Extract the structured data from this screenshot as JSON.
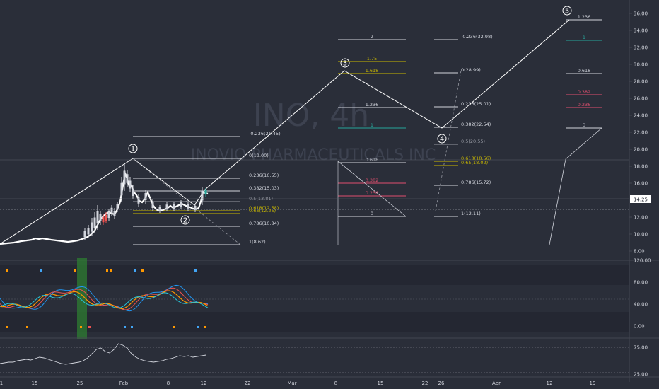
{
  "watermark": {
    "symbol": "INO, 4h",
    "company": "INOVIO PHARMACEUTICALS INC"
  },
  "price_axis": {
    "labels": [
      "36.00",
      "34.00",
      "32.00",
      "30.00",
      "28.00",
      "26.00",
      "24.00",
      "22.00",
      "20.00",
      "18.00",
      "16.00",
      "14.00",
      "12.00",
      "10.00",
      "8.00"
    ],
    "current_price": "14.25",
    "current_price_color": "#1e222d"
  },
  "indicator_axis": {
    "labels": [
      "120.00",
      "80.00",
      "40.00",
      "0.00"
    ]
  },
  "indicator2_axis": {
    "labels": [
      "75.00",
      "25.00"
    ]
  },
  "time_axis": {
    "labels": [
      "1",
      "15",
      "25",
      "Feb",
      "8",
      "12",
      "22",
      "Mar",
      "8",
      "15",
      "22",
      "26",
      "Apr",
      "12",
      "19"
    ]
  },
  "wave_labels": [
    "1",
    "2",
    "3",
    "4",
    "5"
  ],
  "fib_left": {
    "levels": [
      "-0.236(21.45)",
      "0(19.00)",
      "0.236(16.55)",
      "0.382(15.03)",
      "0.5(13.81)",
      "0.618(12.58)",
      "0.65(12.25)",
      "0.786(10.84)",
      "1(8.62)"
    ],
    "colors": [
      "#d1d4dc",
      "#d1d4dc",
      "#d1d4dc",
      "#d1d4dc",
      "#9598a1",
      "#c9b800",
      "#c9b800",
      "#d1d4dc",
      "#d1d4dc"
    ]
  },
  "fib_ext": {
    "levels": [
      "2",
      "1.75",
      "1.618",
      "1.236",
      "1",
      "0.618",
      "0.382",
      "0.236",
      "0"
    ],
    "colors": [
      "#d1d4dc",
      "#c9b800",
      "#c9b800",
      "#d1d4dc",
      "#26a69a",
      "#d1d4dc",
      "#e04f6e",
      "#e04f6e",
      "#d1d4dc"
    ]
  },
  "fib_retr": {
    "levels": [
      "-0.236(32.98)",
      "0(28.99)",
      "0.236(25.01)",
      "0.382(22.54)",
      "0.5(20.55)",
      "0.618(18.56)",
      "0.65(18.02)",
      "0.786(15.72)",
      "1(12.11)"
    ],
    "colors": [
      "#d1d4dc",
      "#d1d4dc",
      "#d1d4dc",
      "#d1d4dc",
      "#9598a1",
      "#c9b800",
      "#c9b800",
      "#d1d4dc",
      "#d1d4dc"
    ]
  },
  "fib_right": {
    "levels": [
      "1.236",
      "1",
      "0.618",
      "0.382",
      "0.236",
      "0"
    ],
    "colors": [
      "#d1d4dc",
      "#26a69a",
      "#d1d4dc",
      "#e04f6e",
      "#e04f6e",
      "#d1d4dc"
    ]
  }
}
